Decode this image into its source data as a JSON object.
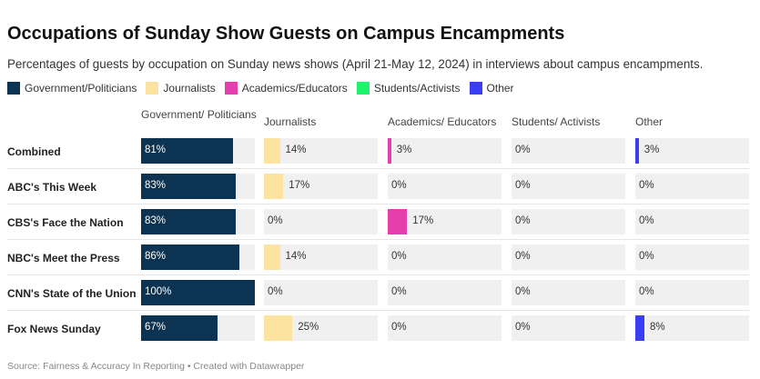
{
  "title": "Occupations of Sunday Show Guests on Campus Encampments",
  "subtitle": "Percentages of guests by occupation on Sunday news shows (April 21-May 12, 2024) in interviews about campus encampments.",
  "source": "Source: Fairness & Accuracy In Reporting • Created with Datawrapper",
  "chart_data": {
    "type": "bar",
    "title": "Occupations of Sunday Show Guests on Campus Encampments",
    "categories": [
      "Combined",
      "ABC's This Week",
      "CBS's Face the Nation",
      "NBC's Meet the Press",
      "CNN's State of the Union",
      "Fox News Sunday"
    ],
    "xlim": [
      0,
      100
    ],
    "legend_position": "top-left",
    "series": [
      {
        "name": "Government/Politicians",
        "header": "Government/ Politicians",
        "color": "#0c3352",
        "values": [
          81,
          83,
          83,
          86,
          100,
          67
        ]
      },
      {
        "name": "Journalists",
        "header": "Journalists",
        "color": "#fde3a0",
        "values": [
          14,
          17,
          0,
          14,
          0,
          25
        ]
      },
      {
        "name": "Academics/Educators",
        "header": "Academics/ Educators",
        "color": "#e43fad",
        "values": [
          3,
          0,
          17,
          0,
          0,
          0
        ]
      },
      {
        "name": "Students/Activists",
        "header": "Students/ Activists",
        "color": "#1df36b",
        "values": [
          0,
          0,
          0,
          0,
          0,
          0
        ]
      },
      {
        "name": "Other",
        "header": "Other",
        "color": "#3a3ef2",
        "values": [
          3,
          0,
          0,
          0,
          0,
          8
        ]
      }
    ]
  }
}
